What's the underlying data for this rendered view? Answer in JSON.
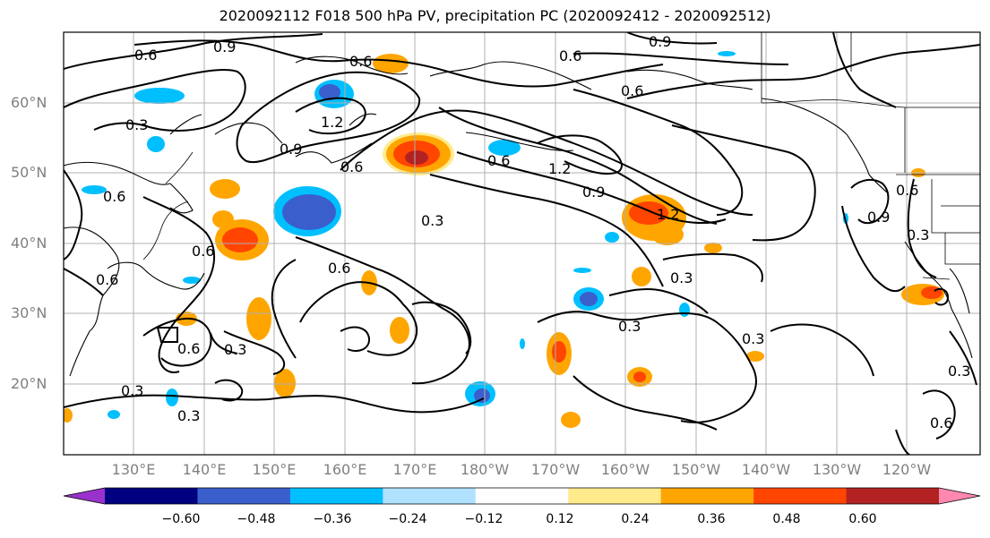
{
  "title": "2020092112 F018 500 hPa PV, precipitation PC (2020092412 - 2020092512)",
  "lat_labels": [
    "60°N",
    "50°N",
    "40°N",
    "30°N",
    "20°N"
  ],
  "lon_labels": [
    "130°E",
    "140°E",
    "150°E",
    "160°E",
    "170°E",
    "180°W",
    "170°W",
    "160°W",
    "150°W",
    "140°W",
    "130°W",
    "120°W"
  ],
  "contour_labels": [
    "0.6",
    "0.9",
    "0.6",
    "0.9",
    "0.6",
    "0.3",
    "1.2",
    "0.9",
    "0.6",
    "0.6",
    "1.2",
    "0.9",
    "1.2",
    "0.3",
    "0.6",
    "0.6",
    "0.3",
    "0.6",
    "0.6",
    "0.3",
    "0.6",
    "0.3",
    "0.3",
    "0.6",
    "0.3",
    "0.9",
    "0.6",
    "0.3",
    "0.3",
    "0.6",
    "0.3"
  ],
  "colorbar": {
    "colors": [
      "#9932cc",
      "#000080",
      "#3a5fcd",
      "#00bfff",
      "#b0e2ff",
      "#ffffff",
      "#ffeb8c",
      "#ffa500",
      "#ff4500",
      "#b22222",
      "#ff88b0"
    ],
    "ticks": [
      "−0.60",
      "−0.48",
      "−0.36",
      "−0.24",
      "−0.12",
      "0.12",
      "0.24",
      "0.36",
      "0.48",
      "0.60"
    ]
  }
}
